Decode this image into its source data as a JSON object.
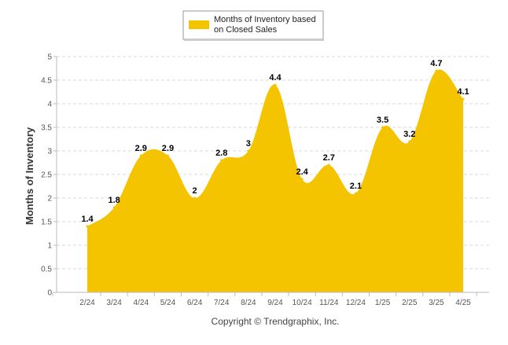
{
  "chart_data": {
    "type": "area",
    "categories": [
      "2/24",
      "3/24",
      "4/24",
      "5/24",
      "6/24",
      "7/24",
      "8/24",
      "9/24",
      "10/24",
      "11/24",
      "12/24",
      "1/25",
      "2/25",
      "3/25",
      "4/25"
    ],
    "series": [
      {
        "name": "Months of Inventory based on Closed Sales",
        "values": [
          1.4,
          1.8,
          2.9,
          2.9,
          2.0,
          2.8,
          3.0,
          4.4,
          2.4,
          2.7,
          2.1,
          3.5,
          3.2,
          4.7,
          4.1
        ],
        "labels": [
          "1.4",
          "1.8",
          "2.9",
          "2.9",
          "2",
          "2.8",
          "3",
          "4.4",
          "2.4",
          "2.7",
          "2.1",
          "3.5",
          "3.2",
          "4.7",
          "4.1"
        ],
        "color": "#F5C400"
      }
    ],
    "ylabel": "Months of Inventory",
    "xlabel": "",
    "ylim": [
      0,
      5
    ],
    "yticks": [
      "0",
      "0.5",
      "1",
      "1.5",
      "2",
      "2.5",
      "3",
      "3.5",
      "4",
      "4.5",
      "5"
    ],
    "grid": "horizontal-dashed",
    "legend_position": "top-center"
  },
  "legend": {
    "line1": "Months of Inventory based",
    "line2": "on Closed Sales"
  },
  "credit": "Copyright © Trendgraphix, Inc.",
  "colors": {
    "area": "#F5C400",
    "grid": "#D8D8D8",
    "axis": "#BBBBBB"
  }
}
